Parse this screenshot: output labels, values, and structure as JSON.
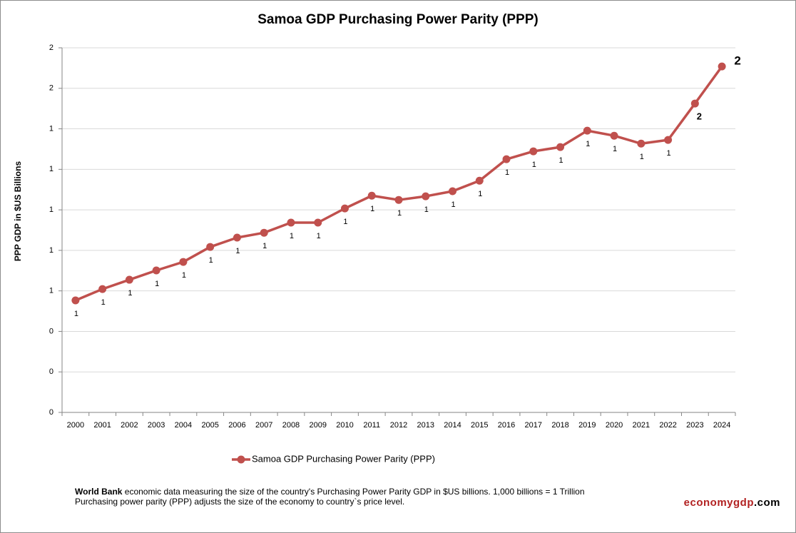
{
  "chart_data": {
    "type": "line",
    "title": "Samoa GDP Purchasing Power Parity (PPP)",
    "y_label": "PPP GDP in $US Billions",
    "categories": [
      "2000",
      "2001",
      "2002",
      "2003",
      "2004",
      "2005",
      "2006",
      "2007",
      "2008",
      "2009",
      "2010",
      "2011",
      "2012",
      "2013",
      "2014",
      "2015",
      "2016",
      "2017",
      "2018",
      "2019",
      "2020",
      "2021",
      "2022",
      "2023",
      "2024"
    ],
    "series": [
      {
        "name": "Samoa GDP Purchasing Power Parity (PPP)",
        "color": "#c0504d",
        "values": [
          0.553,
          0.609,
          0.655,
          0.701,
          0.743,
          0.817,
          0.863,
          0.887,
          0.937,
          0.937,
          1.007,
          1.07,
          1.049,
          1.067,
          1.092,
          1.144,
          1.25,
          1.289,
          1.31,
          1.391,
          1.366,
          1.327,
          1.345,
          1.525,
          1.708
        ],
        "value_labels": [
          "1",
          "1",
          "1",
          "1",
          "1",
          "1",
          "1",
          "1",
          "1",
          "1",
          "1",
          "1",
          "1",
          "1",
          "1",
          "1",
          "1",
          "1",
          "1",
          "1",
          "1",
          "1",
          "1",
          "2",
          "2"
        ]
      }
    ],
    "ylim": [
      0,
      1.8
    ],
    "yticks": [
      0,
      {
        "value": 0.2,
        "label": "0"
      },
      {
        "value": 0.4,
        "label": "0"
      },
      {
        "value": 0.6,
        "label": "1"
      },
      {
        "value": 0.8,
        "label": "1"
      },
      {
        "value": 1.0,
        "label": "1"
      },
      {
        "value": 1.2,
        "label": "1"
      },
      {
        "value": 1.4,
        "label": "1"
      },
      {
        "value": 1.6,
        "label": "2"
      },
      {
        "value": 1.8,
        "label": "2"
      }
    ],
    "grid": true
  },
  "footer": {
    "source_bold": "World Bank",
    "source_text": " economic data  measuring the size of the country's Purchasing Power Parity GDP in $US billions. 1,000 billions = 1 Trillion",
    "line2": "Purchasing power parity (PPP) adjusts the size of the economy to country`s price level.",
    "brand_main": "economygdp",
    "brand_tld": ".com"
  }
}
